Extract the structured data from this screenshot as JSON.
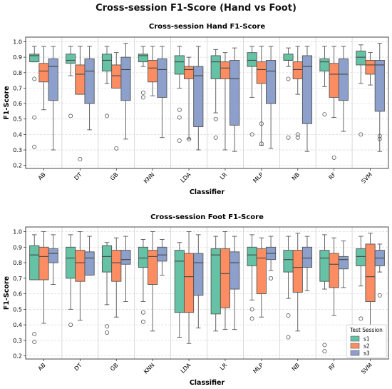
{
  "title": "Cross-session F1-Score (Hand vs Foot)",
  "legend_title": "Test Session",
  "colors": {
    "s1": "#66c2a5",
    "s2": "#fc8d62",
    "s3": "#8da0cb"
  },
  "chart_data": [
    {
      "type": "box",
      "title": "Cross-session Hand F1-Score",
      "xlabel": "Classifier",
      "ylabel": "F1-Score",
      "ylim": [
        0.18,
        1.03
      ],
      "yticks": [
        "0.2",
        "0.3",
        "0.4",
        "0.5",
        "0.6",
        "0.7",
        "0.8",
        "0.9",
        "1.0"
      ],
      "grid": true,
      "categories": [
        "AB",
        "DT",
        "GB",
        "KNN",
        "LDA",
        "LR",
        "MLP",
        "NB",
        "RF",
        "SVM"
      ],
      "series": [
        {
          "name": "s1",
          "boxes": [
            {
              "whislo": 0.87,
              "q1": 0.87,
              "med": 0.91,
              "q3": 0.92,
              "whishi": 0.97,
              "fliers": [
                0.76,
                0.51,
                0.32
              ]
            },
            {
              "whislo": 0.78,
              "q1": 0.86,
              "med": 0.88,
              "q3": 0.92,
              "whishi": 0.97,
              "fliers": [
                0.52
              ]
            },
            {
              "whislo": 0.73,
              "q1": 0.81,
              "med": 0.88,
              "q3": 0.92,
              "whishi": 0.97,
              "fliers": [
                0.52
              ]
            },
            {
              "whislo": 0.84,
              "q1": 0.87,
              "med": 0.91,
              "q3": 0.92,
              "whishi": 0.97,
              "fliers": [
                0.67,
                0.64
              ]
            },
            {
              "whislo": 0.7,
              "q1": 0.79,
              "med": 0.87,
              "q3": 0.91,
              "whishi": 0.97,
              "fliers": [
                0.56,
                0.51,
                0.36
              ]
            },
            {
              "whislo": 0.54,
              "q1": 0.76,
              "med": 0.87,
              "q3": 0.91,
              "whishi": 0.95,
              "fliers": [
                0.5,
                0.38
              ]
            },
            {
              "whislo": 0.64,
              "q1": 0.84,
              "med": 0.88,
              "q3": 0.93,
              "whishi": 0.97,
              "fliers": [
                0.4
              ]
            },
            {
              "whislo": 0.84,
              "q1": 0.88,
              "med": 0.88,
              "q3": 0.92,
              "whishi": 0.96,
              "fliers": [
                0.76,
                0.38
              ]
            },
            {
              "whislo": 0.71,
              "q1": 0.81,
              "med": 0.87,
              "q3": 0.89,
              "whishi": 0.97,
              "fliers": [
                0.53
              ]
            },
            {
              "whislo": 0.73,
              "q1": 0.85,
              "med": 0.9,
              "q3": 0.94,
              "whishi": 0.98,
              "fliers": [
                0.4
              ]
            }
          ]
        },
        {
          "name": "s2",
          "boxes": [
            {
              "whislo": 0.56,
              "q1": 0.74,
              "med": 0.81,
              "q3": 0.86,
              "whishi": 0.97,
              "fliers": []
            },
            {
              "whislo": 0.66,
              "q1": 0.66,
              "med": 0.79,
              "q3": 0.85,
              "whishi": 0.97,
              "fliers": [
                0.24
              ]
            },
            {
              "whislo": 0.7,
              "q1": 0.7,
              "med": 0.78,
              "q3": 0.85,
              "whishi": 0.93,
              "fliers": [
                0.31
              ]
            },
            {
              "whislo": 0.65,
              "q1": 0.74,
              "med": 0.83,
              "q3": 0.88,
              "whishi": 0.97,
              "fliers": []
            },
            {
              "whislo": 0.37,
              "q1": 0.76,
              "med": 0.82,
              "q3": 0.84,
              "whishi": 0.9,
              "fliers": [
                0.37
              ]
            },
            {
              "whislo": 0.3,
              "q1": 0.76,
              "med": 0.83,
              "q3": 0.87,
              "whishi": 0.93,
              "fliers": []
            },
            {
              "whislo": 0.33,
              "q1": 0.73,
              "med": 0.82,
              "q3": 0.87,
              "whishi": 0.97,
              "fliers": [
                0.47,
                0.34
              ]
            },
            {
              "whislo": 0.66,
              "q1": 0.76,
              "med": 0.82,
              "q3": 0.87,
              "whishi": 0.97,
              "fliers": [
                0.4,
                0.38
              ]
            },
            {
              "whislo": 0.51,
              "q1": 0.64,
              "med": 0.79,
              "q3": 0.86,
              "whishi": 0.97,
              "fliers": [
                0.25
              ]
            },
            {
              "whislo": 0.72,
              "q1": 0.79,
              "med": 0.85,
              "q3": 0.88,
              "whishi": 0.93,
              "fliers": []
            }
          ]
        },
        {
          "name": "s3",
          "boxes": [
            {
              "whislo": 0.3,
              "q1": 0.62,
              "med": 0.84,
              "q3": 0.89,
              "whishi": 0.97,
              "fliers": []
            },
            {
              "whislo": 0.43,
              "q1": 0.6,
              "med": 0.81,
              "q3": 0.89,
              "whishi": 0.97,
              "fliers": []
            },
            {
              "whislo": 0.37,
              "q1": 0.62,
              "med": 0.82,
              "q3": 0.9,
              "whishi": 0.99,
              "fliers": []
            },
            {
              "whislo": 0.38,
              "q1": 0.64,
              "med": 0.82,
              "q3": 0.89,
              "whishi": 0.97,
              "fliers": []
            },
            {
              "whislo": 0.3,
              "q1": 0.45,
              "med": 0.78,
              "q3": 0.84,
              "whishi": 0.97,
              "fliers": []
            },
            {
              "whislo": 0.29,
              "q1": 0.46,
              "med": 0.76,
              "q3": 0.88,
              "whishi": 0.96,
              "fliers": []
            },
            {
              "whislo": 0.31,
              "q1": 0.6,
              "med": 0.81,
              "q3": 0.88,
              "whishi": 0.97,
              "fliers": []
            },
            {
              "whislo": 0.29,
              "q1": 0.47,
              "med": 0.84,
              "q3": 0.91,
              "whishi": 0.97,
              "fliers": []
            },
            {
              "whislo": 0.42,
              "q1": 0.62,
              "med": 0.79,
              "q3": 0.89,
              "whishi": 0.97,
              "fliers": []
            },
            {
              "whislo": 0.29,
              "q1": 0.55,
              "med": 0.85,
              "q3": 0.88,
              "whishi": 0.99,
              "fliers": [
                0.39,
                0.37
              ]
            }
          ]
        }
      ]
    },
    {
      "type": "box",
      "title": "Cross-session Foot F1-Score",
      "xlabel": "Classifier",
      "ylabel": "F1-Score",
      "ylim": [
        0.18,
        1.03
      ],
      "yticks": [
        "0.2",
        "0.3",
        "0.4",
        "0.5",
        "0.6",
        "0.7",
        "0.8",
        "0.9",
        "1.0"
      ],
      "grid": true,
      "categories": [
        "AB",
        "DT",
        "GB",
        "KNN",
        "LDA",
        "LR",
        "MLP",
        "NB",
        "RF",
        "SVM"
      ],
      "series": [
        {
          "name": "s1",
          "boxes": [
            {
              "whislo": 0.69,
              "q1": 0.69,
              "med": 0.85,
              "q3": 0.91,
              "whishi": 0.98,
              "fliers": [
                0.34,
                0.29
              ]
            },
            {
              "whislo": 0.5,
              "q1": 0.7,
              "med": 0.83,
              "q3": 0.9,
              "whishi": 0.98,
              "fliers": [
                0.4
              ]
            },
            {
              "whislo": 0.53,
              "q1": 0.74,
              "med": 0.84,
              "q3": 0.91,
              "whishi": 0.93,
              "fliers": [
                0.39,
                0.35
              ]
            },
            {
              "whislo": 0.55,
              "q1": 0.77,
              "med": 0.83,
              "q3": 0.9,
              "whishi": 0.95,
              "fliers": [
                0.48,
                0.42
              ]
            },
            {
              "whislo": 0.32,
              "q1": 0.48,
              "med": 0.81,
              "q3": 0.88,
              "whishi": 0.93,
              "fliers": []
            },
            {
              "whislo": 0.36,
              "q1": 0.47,
              "med": 0.85,
              "q3": 0.89,
              "whishi": 0.97,
              "fliers": []
            },
            {
              "whislo": 0.56,
              "q1": 0.78,
              "med": 0.85,
              "q3": 0.9,
              "whishi": 0.98,
              "fliers": [
                0.5,
                0.44
              ]
            },
            {
              "whislo": 0.57,
              "q1": 0.74,
              "med": 0.82,
              "q3": 0.88,
              "whishi": 0.97,
              "fliers": [
                0.46,
                0.32
              ]
            },
            {
              "whislo": 0.63,
              "q1": 0.68,
              "med": 0.83,
              "q3": 0.88,
              "whishi": 0.98,
              "fliers": [
                0.27,
                0.23
              ]
            },
            {
              "whislo": 0.65,
              "q1": 0.78,
              "med": 0.84,
              "q3": 0.89,
              "whishi": 0.97,
              "fliers": [
                0.44
              ]
            }
          ]
        },
        {
          "name": "s2",
          "boxes": [
            {
              "whislo": 0.41,
              "q1": 0.69,
              "med": 0.84,
              "q3": 0.9,
              "whishi": 1.0,
              "fliers": []
            },
            {
              "whislo": 0.43,
              "q1": 0.68,
              "med": 0.8,
              "q3": 0.88,
              "whishi": 1.0,
              "fliers": []
            },
            {
              "whislo": 0.45,
              "q1": 0.68,
              "med": 0.8,
              "q3": 0.88,
              "whishi": 0.96,
              "fliers": []
            },
            {
              "whislo": 0.36,
              "q1": 0.66,
              "med": 0.84,
              "q3": 0.88,
              "whishi": 1.0,
              "fliers": []
            },
            {
              "whislo": 0.28,
              "q1": 0.48,
              "med": 0.71,
              "q3": 0.86,
              "whishi": 1.0,
              "fliers": []
            },
            {
              "whislo": 0.37,
              "q1": 0.51,
              "med": 0.73,
              "q3": 0.89,
              "whishi": 1.0,
              "fliers": []
            },
            {
              "whislo": 0.45,
              "q1": 0.6,
              "med": 0.83,
              "q3": 0.89,
              "whishi": 0.96,
              "fliers": []
            },
            {
              "whislo": 0.36,
              "q1": 0.61,
              "med": 0.77,
              "q3": 0.88,
              "whishi": 0.99,
              "fliers": []
            },
            {
              "whislo": 0.46,
              "q1": 0.64,
              "med": 0.79,
              "q3": 0.86,
              "whishi": 0.96,
              "fliers": []
            },
            {
              "whislo": 0.38,
              "q1": 0.55,
              "med": 0.71,
              "q3": 0.92,
              "whishi": 0.99,
              "fliers": []
            }
          ]
        },
        {
          "name": "s3",
          "boxes": [
            {
              "whislo": 0.66,
              "q1": 0.8,
              "med": 0.86,
              "q3": 0.89,
              "whishi": 0.98,
              "fliers": []
            },
            {
              "whislo": 0.72,
              "q1": 0.72,
              "med": 0.83,
              "q3": 0.87,
              "whishi": 0.97,
              "fliers": []
            },
            {
              "whislo": 0.55,
              "q1": 0.79,
              "med": 0.82,
              "q3": 0.88,
              "whishi": 0.97,
              "fliers": []
            },
            {
              "whislo": 0.72,
              "q1": 0.81,
              "med": 0.85,
              "q3": 0.9,
              "whishi": 0.95,
              "fliers": []
            },
            {
              "whislo": 0.38,
              "q1": 0.59,
              "med": 0.8,
              "q3": 0.86,
              "whishi": 0.98,
              "fliers": []
            },
            {
              "whislo": 0.37,
              "q1": 0.63,
              "med": 0.8,
              "q3": 0.87,
              "whishi": 0.97,
              "fliers": []
            },
            {
              "whislo": 0.75,
              "q1": 0.82,
              "med": 0.86,
              "q3": 0.9,
              "whishi": 0.97,
              "fliers": [
                0.7
              ]
            },
            {
              "whislo": 0.62,
              "q1": 0.77,
              "med": 0.83,
              "q3": 0.9,
              "whishi": 0.97,
              "fliers": []
            },
            {
              "whislo": 0.64,
              "q1": 0.76,
              "med": 0.82,
              "q3": 0.84,
              "whishi": 0.94,
              "fliers": []
            },
            {
              "whislo": 0.74,
              "q1": 0.78,
              "med": 0.83,
              "q3": 0.88,
              "whishi": 0.92,
              "fliers": [
                0.59
              ]
            }
          ]
        }
      ]
    }
  ]
}
